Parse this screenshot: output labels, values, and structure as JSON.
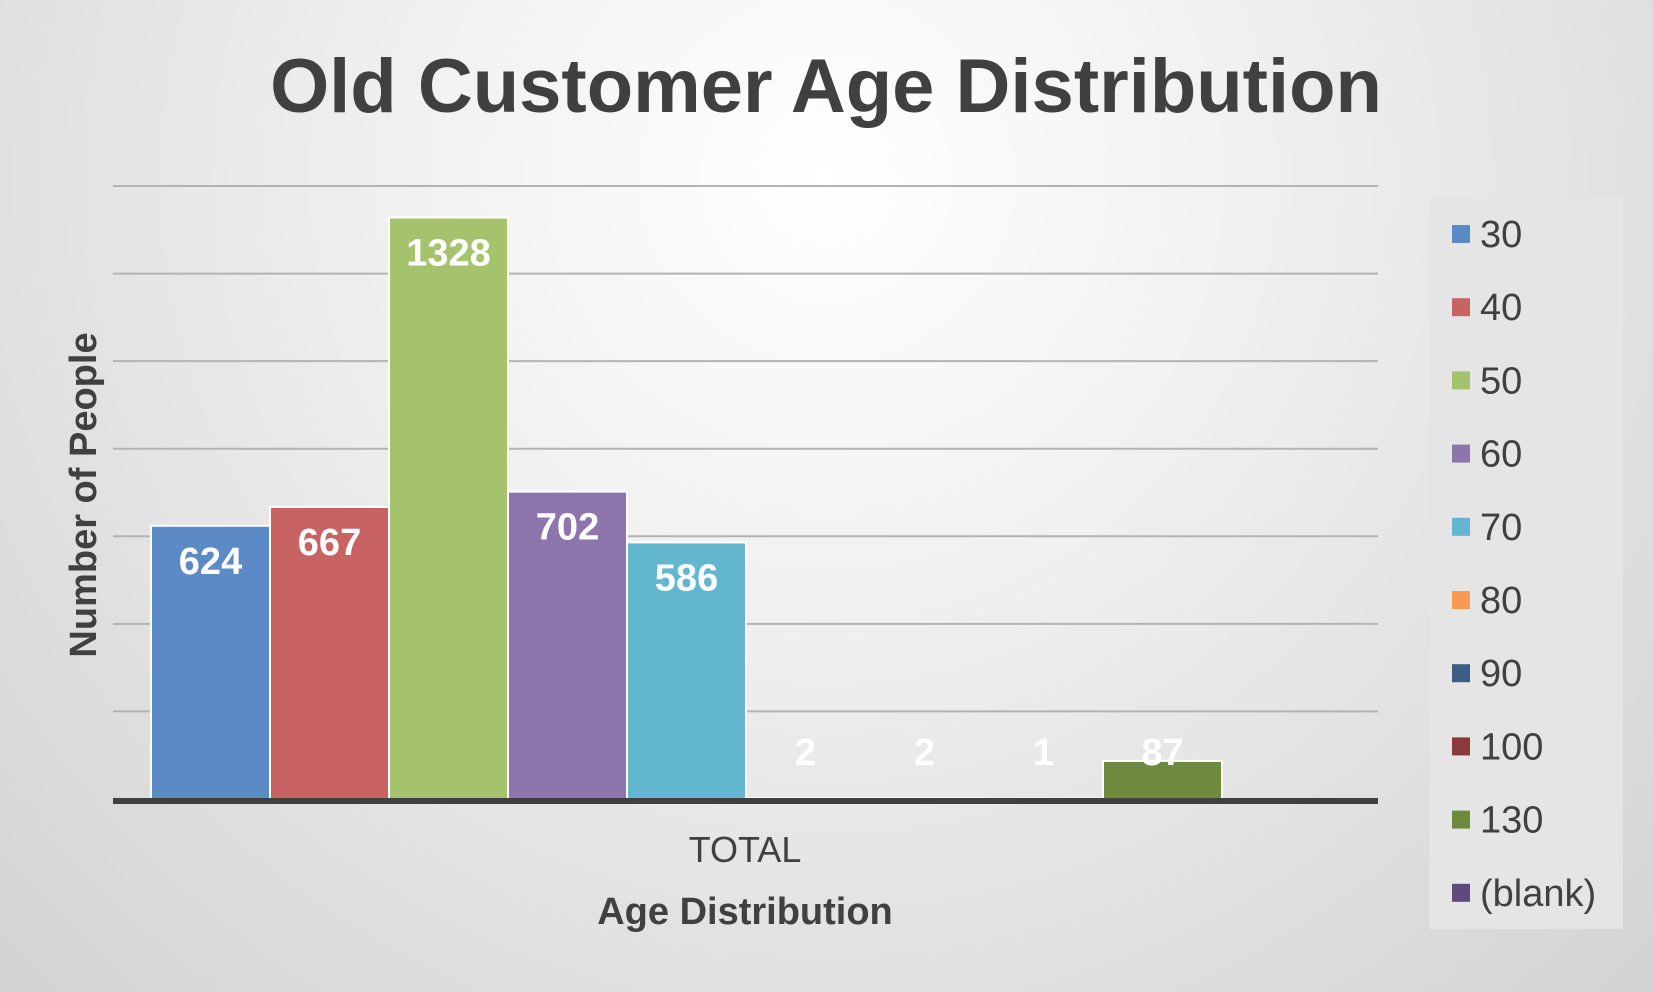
{
  "chart_data": {
    "type": "bar",
    "title": "Old Customer Age Distribution",
    "xlabel": "Age Distribution",
    "ylabel": "Number of People",
    "categories": [
      "TOTAL"
    ],
    "ylim": [
      0,
      1400
    ],
    "grid": true,
    "legend_position": "right",
    "series": [
      {
        "name": "30",
        "values": [
          624
        ],
        "color": "#5b8ac6",
        "label": "624"
      },
      {
        "name": "40",
        "values": [
          667
        ],
        "color": "#c96262",
        "label": "667"
      },
      {
        "name": "50",
        "values": [
          1328
        ],
        "color": "#a5c36c",
        "label": "1328"
      },
      {
        "name": "60",
        "values": [
          702
        ],
        "color": "#8e76ad",
        "label": "702"
      },
      {
        "name": "70",
        "values": [
          586
        ],
        "color": "#62b6cd",
        "label": "586"
      },
      {
        "name": "80",
        "values": [
          2
        ],
        "color": "#f79a52",
        "label": "2"
      },
      {
        "name": "90",
        "values": [
          2
        ],
        "color": "#3e5d84",
        "label": "2"
      },
      {
        "name": "100",
        "values": [
          1
        ],
        "color": "#8a3a3a",
        "label": "1"
      },
      {
        "name": "130",
        "values": [
          87
        ],
        "color": "#6e8a3e",
        "label": "87"
      },
      {
        "name": "(blank)",
        "values": [
          null
        ],
        "color": "#5e4a7c",
        "label": ""
      }
    ]
  }
}
